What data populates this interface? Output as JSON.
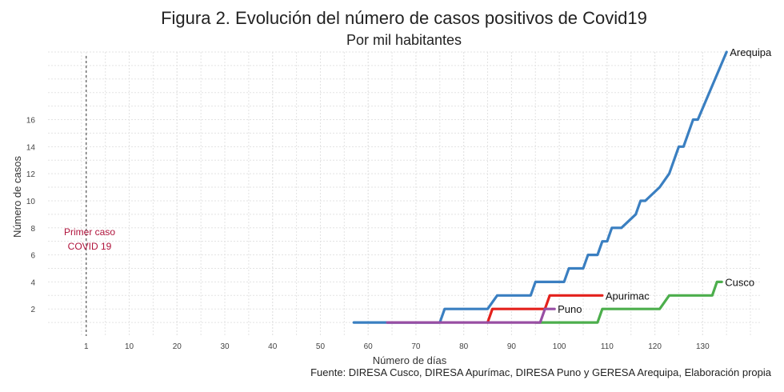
{
  "chart_data": {
    "type": "line",
    "title": "Figura 2. Evolución del número de casos positivos de Covid19",
    "subtitle": "Por mil habitantes",
    "xlabel": "Número de días",
    "ylabel": "Número de casos",
    "caption": "Fuente: DIRESA Cusco, DIRESA Apurímac, DIRESA Puno y GERESA Arequipa, Elaboración propia",
    "xlim": [
      -7,
      142
    ],
    "ylim": [
      0,
      21
    ],
    "x_ticks": [
      1,
      10,
      20,
      30,
      40,
      50,
      60,
      70,
      80,
      90,
      100,
      110,
      120,
      130
    ],
    "y_ticks": [
      2,
      4,
      6,
      8,
      10,
      12,
      14,
      16
    ],
    "grid": true,
    "legend": "labels at line ends",
    "vline": {
      "x": 1,
      "style": "dashed",
      "label": "Primer caso\nCOVID 19"
    },
    "series": [
      {
        "name": "Arequipa",
        "color": "#3a7fc1",
        "points": [
          [
            57,
            1
          ],
          [
            75,
            1
          ],
          [
            76,
            2
          ],
          [
            85,
            2
          ],
          [
            87,
            3
          ],
          [
            94,
            3
          ],
          [
            95,
            4
          ],
          [
            101,
            4
          ],
          [
            102,
            5
          ],
          [
            105,
            5
          ],
          [
            106,
            6
          ],
          [
            108,
            6
          ],
          [
            109,
            7
          ],
          [
            110,
            7
          ],
          [
            111,
            8
          ],
          [
            113,
            8
          ],
          [
            116,
            9
          ],
          [
            117,
            10
          ],
          [
            118,
            10
          ],
          [
            121,
            11
          ],
          [
            123,
            12
          ],
          [
            125,
            14
          ],
          [
            126,
            14
          ],
          [
            128,
            16
          ],
          [
            129,
            16
          ],
          [
            135,
            21
          ]
        ]
      },
      {
        "name": "Cusco",
        "color": "#4cae4c",
        "points": [
          [
            95,
            1
          ],
          [
            108,
            1
          ],
          [
            109,
            2
          ],
          [
            121,
            2
          ],
          [
            123,
            3
          ],
          [
            132,
            3
          ],
          [
            133,
            4
          ],
          [
            134,
            4
          ]
        ]
      },
      {
        "name": "Apurimac",
        "color": "#e4211c",
        "points": [
          [
            85,
            1
          ],
          [
            86,
            2
          ],
          [
            97,
            2
          ],
          [
            98,
            3
          ],
          [
            109,
            3
          ]
        ]
      },
      {
        "name": "Puno",
        "color": "#984ea3",
        "points": [
          [
            64,
            1
          ],
          [
            96,
            1
          ],
          [
            97,
            2
          ],
          [
            99,
            2
          ]
        ]
      }
    ]
  }
}
